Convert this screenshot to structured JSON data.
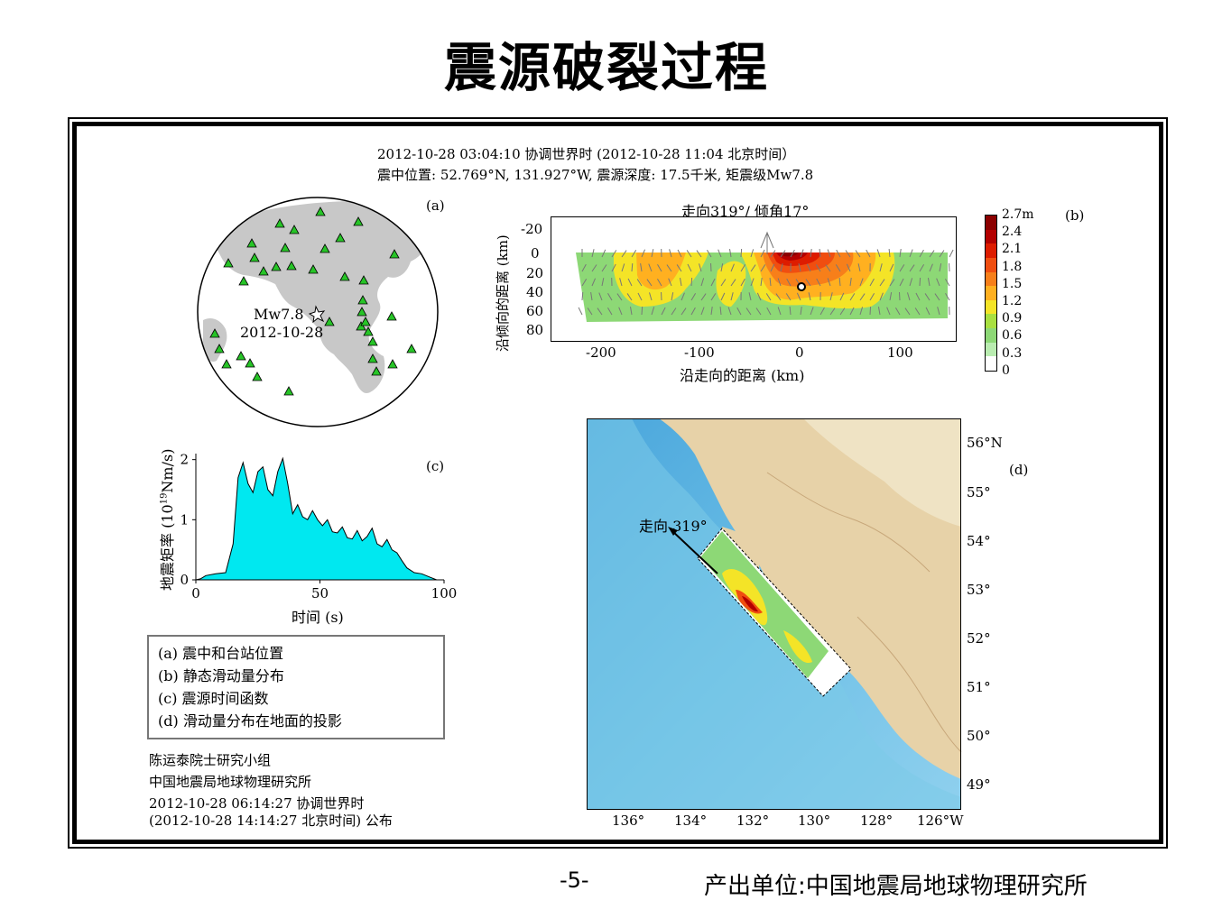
{
  "title": "震源破裂过程",
  "header": {
    "line1": "2012-10-28 03:04:10 协调世界时  (2012-10-28 11:04 北京时间）",
    "line2": "震中位置: 52.769°N, 131.927°W,  震源深度: 17.5千米,  矩震级Mw7.8"
  },
  "panel_a": {
    "label": "(a)",
    "event_mag": "Mw7.8",
    "event_date": "2012-10-28"
  },
  "panel_b": {
    "label": "(b)",
    "title": "走向319°/ 倾角17°",
    "ylabel": "沿倾向的距离 (km)",
    "xlabel": "沿走向的距离 (km)",
    "yticks": [
      "-20",
      "0",
      "20",
      "40",
      "60",
      "80"
    ],
    "xticks": [
      "-200",
      "-100",
      "0",
      "100"
    ],
    "colorbar_labels": [
      "2.7m",
      "2.4",
      "2.1",
      "1.8",
      "1.5",
      "1.2",
      "0.9",
      "0.6",
      "0.3",
      "0"
    ],
    "colorbar_colors": [
      "#8b0000",
      "#b30000",
      "#dd1c00",
      "#f04e10",
      "#f77f1a",
      "#ffb020",
      "#f4e427",
      "#a8e040",
      "#8dd876",
      "#b9ecb0",
      "#ffffff"
    ]
  },
  "panel_c": {
    "label": "(c)",
    "ylabel": "地震矩率 (10",
    "ylabel_sup": "19",
    "ylabel_tail": "Nm/s)",
    "xlabel": "时间 (s)",
    "yticks": [
      "0",
      "1",
      "2"
    ],
    "xticks": [
      "0",
      "50",
      "100"
    ],
    "fill_color": "#00e8f0"
  },
  "chart_data": {
    "type": "area",
    "title": "",
    "xlabel": "时间 (s)",
    "ylabel": "地震矩率 (10^19Nm/s)",
    "xlim": [
      0,
      100
    ],
    "ylim": [
      0,
      2.1
    ],
    "x": [
      0,
      2,
      4,
      8,
      12,
      15,
      17,
      19,
      21,
      23,
      25,
      27,
      29,
      31,
      33,
      35,
      37,
      39,
      41,
      43,
      45,
      47,
      49,
      51,
      53,
      55,
      57,
      59,
      61,
      63,
      65,
      67,
      69,
      71,
      73,
      75,
      77,
      79,
      81,
      83,
      85,
      88,
      91,
      94,
      97
    ],
    "series": [
      {
        "values": [
          0,
          0.02,
          0.07,
          0.1,
          0.12,
          0.6,
          1.7,
          1.95,
          1.6,
          1.45,
          1.8,
          1.88,
          1.5,
          1.4,
          1.8,
          2.02,
          1.6,
          1.1,
          1.25,
          1.05,
          1.0,
          1.15,
          1.0,
          0.9,
          1.0,
          0.8,
          0.78,
          0.88,
          0.7,
          0.68,
          0.82,
          0.65,
          0.72,
          0.86,
          0.6,
          0.55,
          0.67,
          0.5,
          0.45,
          0.32,
          0.2,
          0.12,
          0.1,
          0.05,
          0
        ]
      }
    ]
  },
  "panel_d": {
    "label": "(d)",
    "strike_text": "走向 319°",
    "lat_labels": [
      "56°N",
      "55°",
      "54°",
      "53°",
      "52°",
      "51°",
      "50°",
      "49°"
    ],
    "lon_labels": [
      "136°",
      "134°",
      "132°",
      "130°",
      "128°",
      "126°W"
    ]
  },
  "legend": [
    "(a) 震中和台站位置",
    "(b) 静态滑动量分布",
    "(c) 震源时间函数",
    "(d) 滑动量分布在地面的投影"
  ],
  "credits": {
    "group": "陈运泰院士研究小组",
    "institute": "中国地震局地球物理研究所",
    "time1": "2012-10-28 06:14:27 协调世界时",
    "time2": "(2012-10-28 14:14:27 北京时间)  公布"
  },
  "footer": {
    "page": "-5-",
    "org": "产出单位:中国地震局地球物理研究所"
  }
}
